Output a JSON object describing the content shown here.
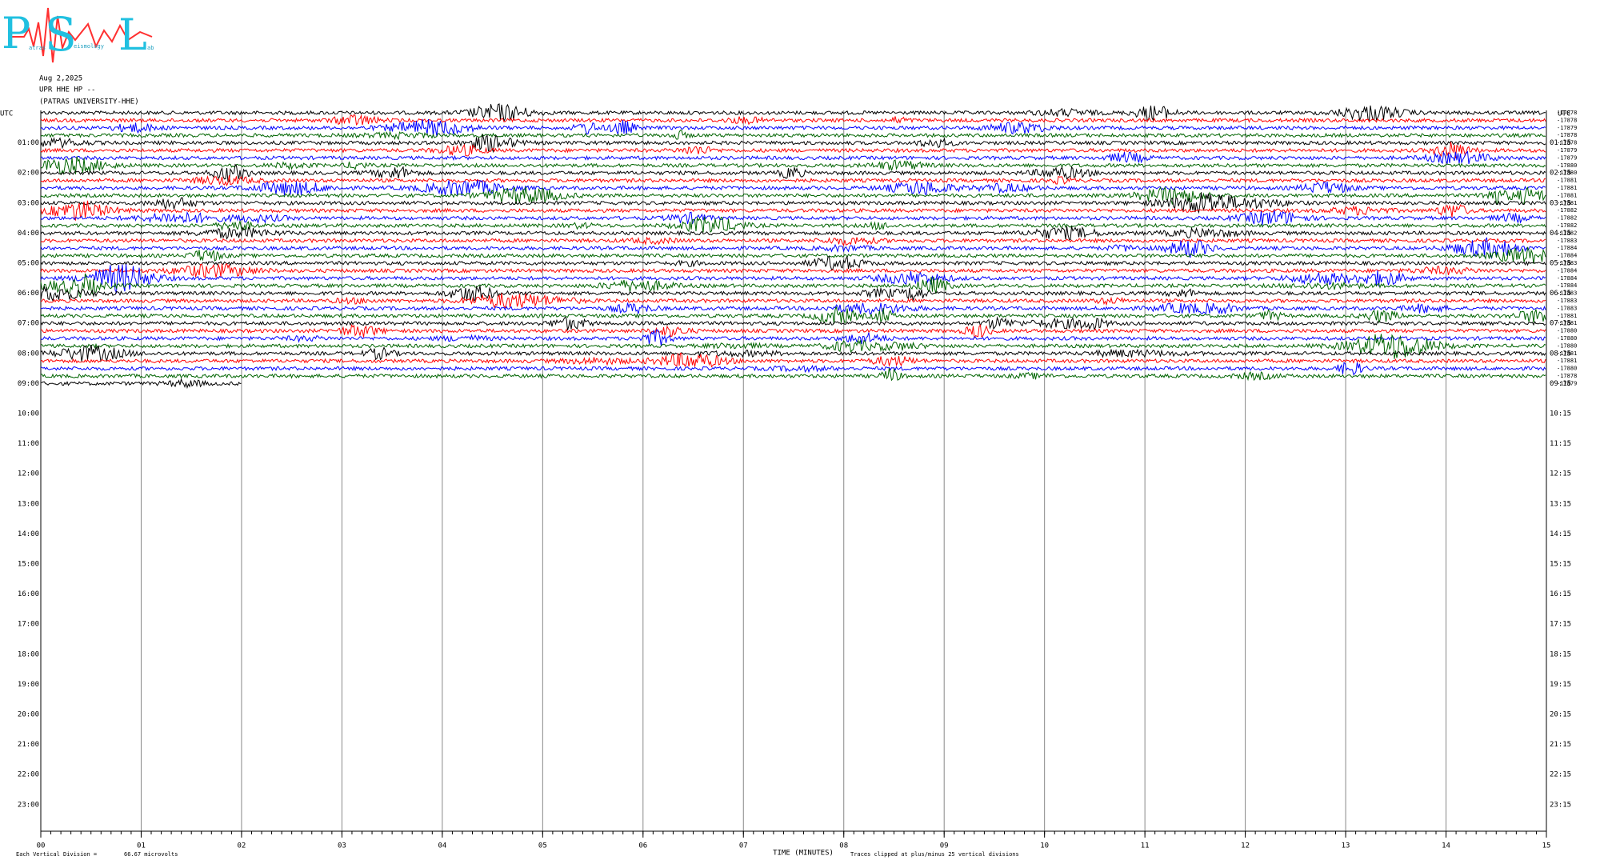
{
  "logo": {
    "letters": [
      "P",
      "S",
      "L"
    ],
    "words": [
      "atras",
      "eismology",
      "ab"
    ]
  },
  "header": {
    "date": "Aug 2,2025",
    "station": "UPR HHE HP --",
    "network": "(PATRAS UNIVERSITY-HHE)"
  },
  "chart_data": {
    "type": "helicorder",
    "left_axis": {
      "label": "UTC",
      "ticks": [
        "01:00",
        "02:00",
        "03:00",
        "04:00",
        "05:00",
        "06:00",
        "07:00",
        "08:00",
        "09:00",
        "10:00",
        "11:00",
        "12:00",
        "13:00",
        "14:00",
        "15:00",
        "16:00",
        "17:00",
        "18:00",
        "19:00",
        "20:00",
        "21:00",
        "22:00",
        "23:00"
      ]
    },
    "right_axis": {
      "label": "UTC",
      "ticks": [
        "01:15",
        "02:15",
        "03:15",
        "04:15",
        "05:15",
        "06:15",
        "07:15",
        "08:15",
        "09:15",
        "10:15",
        "11:15",
        "12:15",
        "13:15",
        "14:15",
        "15:15",
        "16:15",
        "17:15",
        "18:15",
        "19:15",
        "20:15",
        "21:15",
        "22:15",
        "23:15"
      ]
    },
    "xlim": [
      0,
      15
    ],
    "xticks": [
      {
        "value": 0,
        "label": "00"
      },
      {
        "value": 1,
        "label": "01"
      },
      {
        "value": 2,
        "label": "02"
      },
      {
        "value": 3,
        "label": "03"
      },
      {
        "value": 4,
        "label": "04"
      },
      {
        "value": 5,
        "label": "05"
      },
      {
        "value": 6,
        "label": "06"
      },
      {
        "value": 7,
        "label": "07"
      },
      {
        "value": 8,
        "label": "08"
      },
      {
        "value": 9,
        "label": "09"
      },
      10,
      11,
      12,
      13,
      14,
      15
    ],
    "xlabel": "TIME (MINUTES)",
    "last_trace_end_minute": 2,
    "traces": [
      {
        "label": "-17878",
        "color": "#000000"
      },
      {
        "label": "-17878",
        "color": "#ff0000"
      },
      {
        "label": "-17879",
        "color": "#0000ff"
      },
      {
        "label": "-17878",
        "color": "#006400"
      },
      {
        "label": "-17878",
        "color": "#000000"
      },
      {
        "label": "-17879",
        "color": "#ff0000"
      },
      {
        "label": "-17879",
        "color": "#0000ff"
      },
      {
        "label": "-17880",
        "color": "#006400"
      },
      {
        "label": "-17880",
        "color": "#000000"
      },
      {
        "label": "-17881",
        "color": "#ff0000"
      },
      {
        "label": "-17881",
        "color": "#0000ff"
      },
      {
        "label": "-17881",
        "color": "#006400"
      },
      {
        "label": "-17881",
        "color": "#000000"
      },
      {
        "label": "-17882",
        "color": "#ff0000"
      },
      {
        "label": "-17882",
        "color": "#0000ff"
      },
      {
        "label": "-17882",
        "color": "#006400"
      },
      {
        "label": "-17882",
        "color": "#000000"
      },
      {
        "label": "-17883",
        "color": "#ff0000"
      },
      {
        "label": "-17884",
        "color": "#0000ff"
      },
      {
        "label": "-17884",
        "color": "#006400"
      },
      {
        "label": "-17883",
        "color": "#000000"
      },
      {
        "label": "-17884",
        "color": "#ff0000"
      },
      {
        "label": "-17884",
        "color": "#0000ff"
      },
      {
        "label": "-17884",
        "color": "#006400"
      },
      {
        "label": "-17883",
        "color": "#000000"
      },
      {
        "label": "-17883",
        "color": "#ff0000"
      },
      {
        "label": "-17883",
        "color": "#0000ff"
      },
      {
        "label": "-17881",
        "color": "#006400"
      },
      {
        "label": "-17881",
        "color": "#000000"
      },
      {
        "label": "-17880",
        "color": "#ff0000"
      },
      {
        "label": "-17880",
        "color": "#0000ff"
      },
      {
        "label": "-17880",
        "color": "#006400"
      },
      {
        "label": "-17881",
        "color": "#000000"
      },
      {
        "label": "-17881",
        "color": "#ff0000"
      },
      {
        "label": "-17880",
        "color": "#0000ff"
      },
      {
        "label": "-17878",
        "color": "#006400"
      },
      {
        "label": "-17879",
        "color": "#000000"
      }
    ],
    "footer": {
      "division_label": "Each Vertical Division =",
      "division_value": "66.67 microvolts",
      "clip_note": "Traces clipped at plus/minus 25 vertical divisions"
    }
  }
}
